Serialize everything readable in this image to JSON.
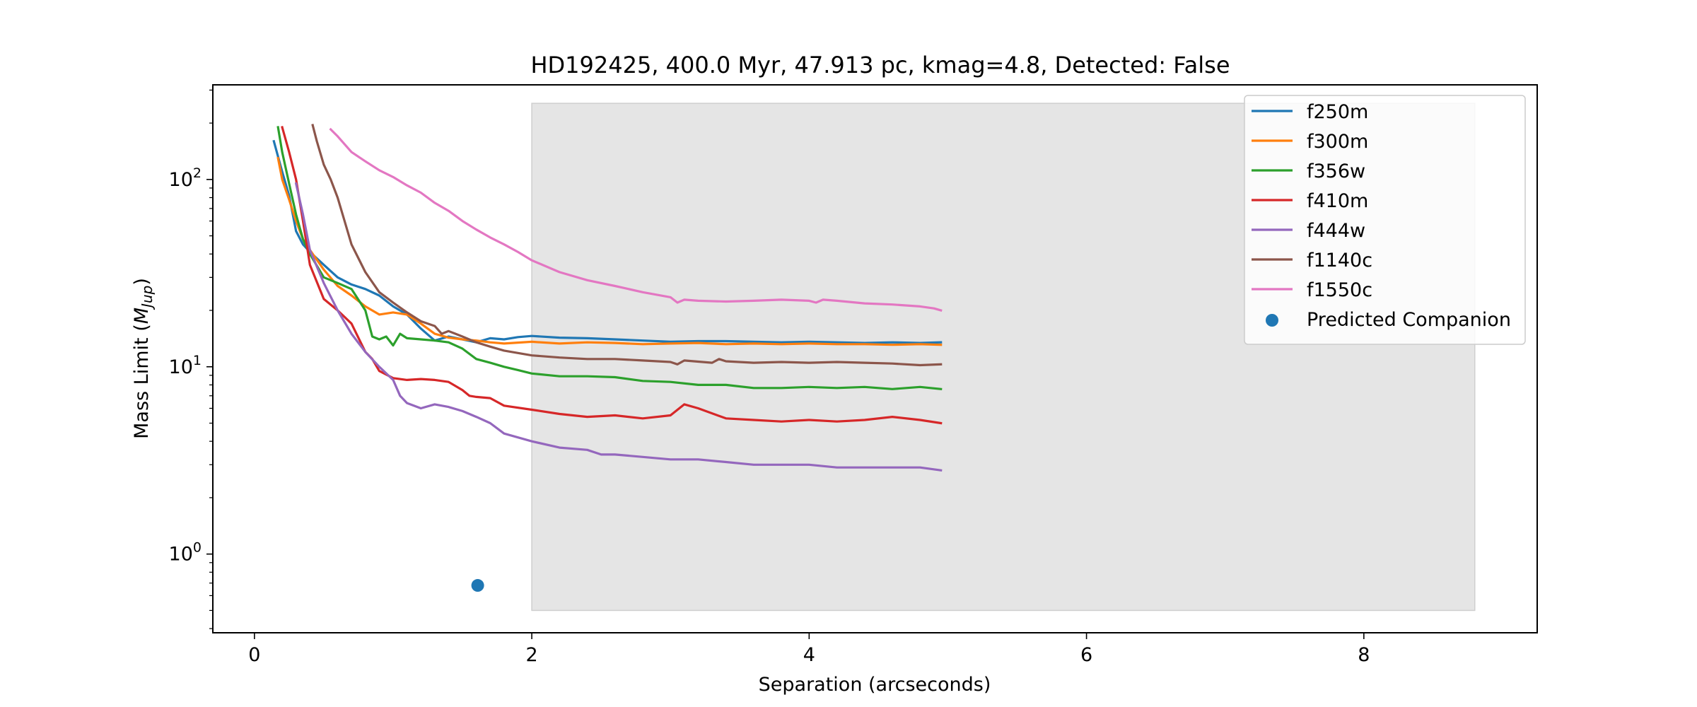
{
  "chart_data": {
    "type": "line",
    "title": "HD192425, 400.0 Myr, 47.913 pc, kmag=4.8, Detected: False",
    "xlabel": "Separation (arcseconds)",
    "ylabel": "Mass Limit",
    "ylabel_math_base": "M",
    "ylabel_math_sub": "Jup",
    "yscale": "log",
    "xlim": [
      -0.3,
      9.25
    ],
    "ylim": [
      0.38,
      320
    ],
    "x_ticks": [
      0,
      2,
      4,
      6,
      8
    ],
    "x_tick_labels": [
      "0",
      "2",
      "4",
      "6",
      "8"
    ],
    "y_ticks": [
      1,
      10,
      100
    ],
    "y_tick_labels": [
      {
        "base": "10",
        "exp": "0"
      },
      {
        "base": "10",
        "exp": "1"
      },
      {
        "base": "10",
        "exp": "2"
      }
    ],
    "grid": false,
    "legend_position": "top-right",
    "shaded_region": {
      "x": [
        2.0,
        8.8
      ],
      "y": [
        0.5,
        255
      ],
      "color": "#e5e5e5"
    },
    "series": [
      {
        "name": "f250m",
        "color": "#1f77b4",
        "x": [
          0.14,
          0.2,
          0.25,
          0.3,
          0.35,
          0.4,
          0.5,
          0.6,
          0.7,
          0.8,
          0.9,
          1.0,
          1.1,
          1.2,
          1.3,
          1.4,
          1.5,
          1.6,
          1.7,
          1.8,
          1.9,
          2.0,
          2.2,
          2.4,
          2.6,
          2.8,
          3.0,
          3.2,
          3.4,
          3.6,
          3.8,
          4.0,
          4.2,
          4.4,
          4.6,
          4.8,
          4.95
        ],
        "y": [
          160,
          110,
          82,
          53,
          45,
          41,
          35,
          30,
          27.5,
          26,
          24,
          21,
          19,
          16,
          13.8,
          14.5,
          14,
          13.5,
          14.2,
          14,
          14.4,
          14.6,
          14.3,
          14.2,
          14,
          13.8,
          13.6,
          13.7,
          13.7,
          13.6,
          13.5,
          13.6,
          13.5,
          13.4,
          13.5,
          13.4,
          13.5
        ]
      },
      {
        "name": "f300m",
        "color": "#ff7f0e",
        "x": [
          0.17,
          0.2,
          0.25,
          0.3,
          0.35,
          0.4,
          0.5,
          0.6,
          0.7,
          0.8,
          0.9,
          1.0,
          1.1,
          1.2,
          1.3,
          1.4,
          1.5,
          1.6,
          1.7,
          1.8,
          2.0,
          2.2,
          2.4,
          2.6,
          2.8,
          3.0,
          3.2,
          3.4,
          3.6,
          3.8,
          4.0,
          4.2,
          4.4,
          4.6,
          4.8,
          4.95
        ],
        "y": [
          130,
          100,
          78,
          60,
          48,
          42,
          33,
          27,
          24,
          21,
          19,
          19.5,
          19,
          17,
          15,
          14.3,
          14,
          13.8,
          13.5,
          13.3,
          13.6,
          13.3,
          13.5,
          13.4,
          13.2,
          13.3,
          13.4,
          13.2,
          13.3,
          13.2,
          13.3,
          13.2,
          13.2,
          13.1,
          13.2,
          13.1
        ]
      },
      {
        "name": "f356w",
        "color": "#2ca02c",
        "x": [
          0.17,
          0.2,
          0.25,
          0.3,
          0.35,
          0.4,
          0.5,
          0.6,
          0.7,
          0.8,
          0.85,
          0.9,
          0.95,
          1.0,
          1.05,
          1.1,
          1.2,
          1.3,
          1.4,
          1.5,
          1.6,
          1.7,
          1.8,
          1.9,
          2.0,
          2.2,
          2.4,
          2.6,
          2.8,
          3.0,
          3.2,
          3.4,
          3.6,
          3.8,
          4.0,
          4.2,
          4.4,
          4.6,
          4.8,
          4.95
        ],
        "y": [
          190,
          140,
          95,
          65,
          48,
          40,
          30,
          28,
          26,
          20,
          14.5,
          14,
          14.5,
          13,
          15,
          14.2,
          14,
          13.8,
          13.5,
          12.5,
          11,
          10.5,
          10,
          9.6,
          9.2,
          8.9,
          8.9,
          8.8,
          8.4,
          8.3,
          8.0,
          8.0,
          7.7,
          7.7,
          7.8,
          7.7,
          7.8,
          7.6,
          7.8,
          7.6
        ]
      },
      {
        "name": "f410m",
        "color": "#d62728",
        "x": [
          0.2,
          0.25,
          0.3,
          0.35,
          0.4,
          0.5,
          0.6,
          0.7,
          0.8,
          0.85,
          0.9,
          1.0,
          1.1,
          1.2,
          1.3,
          1.4,
          1.5,
          1.55,
          1.6,
          1.7,
          1.8,
          2.0,
          2.2,
          2.4,
          2.6,
          2.8,
          3.0,
          3.1,
          3.2,
          3.4,
          3.6,
          3.8,
          4.0,
          4.2,
          4.4,
          4.6,
          4.8,
          4.95
        ],
        "y": [
          190,
          140,
          100,
          60,
          35,
          23,
          20,
          17,
          12,
          11,
          9.5,
          8.7,
          8.5,
          8.6,
          8.5,
          8.3,
          7.5,
          7.0,
          6.9,
          6.8,
          6.2,
          5.9,
          5.6,
          5.4,
          5.5,
          5.3,
          5.5,
          6.3,
          6.0,
          5.3,
          5.2,
          5.1,
          5.2,
          5.1,
          5.2,
          5.4,
          5.2,
          5.0
        ]
      },
      {
        "name": "f444w",
        "color": "#9467bd",
        "x": [
          0.3,
          0.35,
          0.4,
          0.5,
          0.6,
          0.7,
          0.8,
          0.9,
          1.0,
          1.05,
          1.1,
          1.2,
          1.3,
          1.4,
          1.5,
          1.6,
          1.7,
          1.8,
          2.0,
          2.2,
          2.4,
          2.5,
          2.6,
          2.8,
          3.0,
          3.2,
          3.4,
          3.6,
          3.8,
          4.0,
          4.2,
          4.4,
          4.6,
          4.8,
          4.95
        ],
        "y": [
          95,
          65,
          42,
          28,
          20,
          15,
          12,
          10,
          8.5,
          7,
          6.4,
          6.0,
          6.3,
          6.1,
          5.8,
          5.4,
          5.0,
          4.4,
          4.0,
          3.7,
          3.6,
          3.4,
          3.4,
          3.3,
          3.2,
          3.2,
          3.1,
          3.0,
          3.0,
          3.0,
          2.9,
          2.9,
          2.9,
          2.9,
          2.8
        ]
      },
      {
        "name": "f1140c",
        "color": "#8c564b",
        "x": [
          0.42,
          0.45,
          0.5,
          0.55,
          0.6,
          0.65,
          0.7,
          0.8,
          0.9,
          1.0,
          1.1,
          1.2,
          1.3,
          1.35,
          1.4,
          1.45,
          1.5,
          1.6,
          1.7,
          1.8,
          2.0,
          2.2,
          2.4,
          2.6,
          2.8,
          3.0,
          3.05,
          3.1,
          3.3,
          3.35,
          3.4,
          3.6,
          3.8,
          4.0,
          4.2,
          4.4,
          4.6,
          4.8,
          4.95
        ],
        "y": [
          195,
          160,
          120,
          100,
          80,
          60,
          45,
          32,
          25,
          22,
          19.5,
          17.5,
          16.5,
          15,
          15.5,
          15,
          14.5,
          13.5,
          12.8,
          12.2,
          11.5,
          11.2,
          11.0,
          11.0,
          10.8,
          10.6,
          10.3,
          10.8,
          10.5,
          11.0,
          10.7,
          10.5,
          10.6,
          10.5,
          10.6,
          10.5,
          10.4,
          10.2,
          10.3
        ]
      },
      {
        "name": "f1550c",
        "color": "#e377c2",
        "x": [
          0.55,
          0.6,
          0.7,
          0.8,
          0.9,
          1.0,
          1.1,
          1.2,
          1.3,
          1.4,
          1.5,
          1.6,
          1.7,
          1.8,
          1.9,
          2.0,
          2.2,
          2.4,
          2.6,
          2.8,
          3.0,
          3.05,
          3.1,
          3.2,
          3.4,
          3.6,
          3.8,
          4.0,
          4.05,
          4.1,
          4.2,
          4.4,
          4.6,
          4.8,
          4.9,
          4.95
        ],
        "y": [
          185,
          170,
          140,
          125,
          112,
          103,
          93,
          85,
          75,
          68,
          60,
          54,
          49,
          45,
          41,
          37,
          32,
          29,
          27,
          25,
          23.5,
          22,
          22.8,
          22.5,
          22.3,
          22.5,
          22.8,
          22.5,
          22,
          22.8,
          22.5,
          21.8,
          21.5,
          21,
          20.5,
          20
        ]
      }
    ],
    "scatter": [
      {
        "name": "Predicted Companion",
        "color": "#1f77b4",
        "x": [
          1.61
        ],
        "y": [
          0.68
        ]
      }
    ]
  }
}
